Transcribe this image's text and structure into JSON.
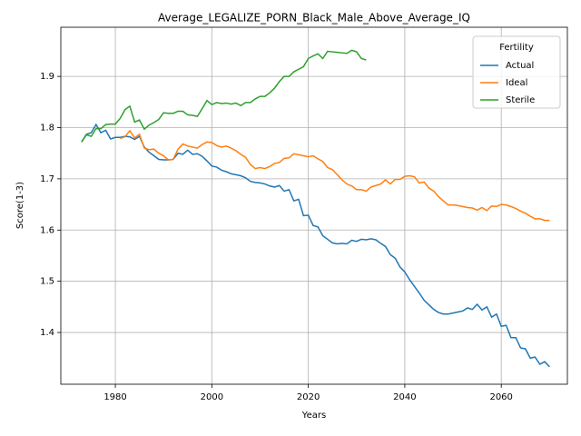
{
  "chart_data": {
    "type": "line",
    "title": "Average_LEGALIZE_PORN_Black_Male_Above_Average_IQ",
    "x_label": "Years",
    "y_label": "Score(1-3)",
    "legend_title": "Fertility",
    "legend_position": "upper right",
    "grid": true,
    "xlim": [
      1968.7,
      2073.7
    ],
    "ylim": [
      1.299,
      1.996
    ],
    "xticks": [
      1980,
      2000,
      2020,
      2040,
      2060
    ],
    "yticks": [
      1.4,
      1.5,
      1.6,
      1.7,
      1.8,
      1.9
    ],
    "x": [
      1973,
      1974,
      1975,
      1976,
      1977,
      1978,
      1979,
      1980,
      1981,
      1982,
      1983,
      1984,
      1985,
      1986,
      1987,
      1988,
      1989,
      1990,
      1991,
      1992,
      1993,
      1994,
      1995,
      1996,
      1997,
      1998,
      1999,
      2000,
      2001,
      2002,
      2003,
      2004,
      2005,
      2006,
      2007,
      2008,
      2009,
      2010,
      2011,
      2012,
      2013,
      2014,
      2015,
      2016,
      2017,
      2018,
      2019,
      2020,
      2021,
      2022,
      2023,
      2024,
      2025,
      2026,
      2027,
      2028,
      2029,
      2030,
      2031,
      2032,
      2033,
      2034,
      2035,
      2036,
      2037,
      2038,
      2039,
      2040,
      2041,
      2042,
      2043,
      2044,
      2045,
      2046,
      2047,
      2048,
      2049,
      2050,
      2051,
      2052,
      2053,
      2054,
      2055,
      2056,
      2057,
      2058,
      2059,
      2060,
      2061,
      2062,
      2063,
      2064,
      2065,
      2066,
      2067,
      2068,
      2069,
      2070
    ],
    "series": [
      {
        "name": "Actual",
        "color": "#1f77b4",
        "values": [
          1.772,
          1.787,
          1.79,
          1.806,
          1.79,
          1.795,
          1.778,
          1.781,
          1.781,
          1.783,
          1.782,
          1.777,
          1.783,
          1.762,
          1.752,
          1.745,
          1.738,
          1.737,
          1.737,
          1.738,
          1.75,
          1.748,
          1.756,
          1.748,
          1.749,
          1.744,
          1.735,
          1.725,
          1.723,
          1.717,
          1.714,
          1.71,
          1.708,
          1.706,
          1.702,
          1.695,
          1.693,
          1.692,
          1.69,
          1.686,
          1.684,
          1.687,
          1.676,
          1.679,
          1.657,
          1.66,
          1.628,
          1.629,
          1.609,
          1.606,
          1.589,
          1.582,
          1.575,
          1.573,
          1.574,
          1.573,
          1.58,
          1.578,
          1.582,
          1.581,
          1.583,
          1.581,
          1.574,
          1.568,
          1.552,
          1.545,
          1.528,
          1.518,
          1.503,
          1.49,
          1.477,
          1.463,
          1.454,
          1.445,
          1.439,
          1.436,
          1.436,
          1.438,
          1.44,
          1.442,
          1.448,
          1.445,
          1.455,
          1.444,
          1.45,
          1.43,
          1.436,
          1.412,
          1.414,
          1.39,
          1.39,
          1.37,
          1.368,
          1.35,
          1.352,
          1.338,
          1.343,
          1.333
        ]
      },
      {
        "name": "Ideal",
        "color": "#ff7f0e",
        "values": [
          null,
          null,
          null,
          null,
          null,
          null,
          null,
          null,
          1.779,
          1.782,
          1.794,
          1.78,
          1.787,
          1.76,
          1.757,
          1.758,
          1.75,
          1.745,
          1.737,
          1.738,
          1.758,
          1.768,
          1.764,
          1.762,
          1.76,
          1.767,
          1.772,
          1.771,
          1.765,
          1.762,
          1.764,
          1.76,
          1.755,
          1.748,
          1.742,
          1.728,
          1.72,
          1.722,
          1.72,
          1.724,
          1.73,
          1.732,
          1.74,
          1.741,
          1.749,
          1.747,
          1.745,
          1.743,
          1.745,
          1.739,
          1.734,
          1.722,
          1.718,
          1.708,
          1.698,
          1.69,
          1.686,
          1.679,
          1.679,
          1.676,
          1.684,
          1.687,
          1.69,
          1.698,
          1.69,
          1.699,
          1.699,
          1.705,
          1.706,
          1.704,
          1.692,
          1.694,
          1.682,
          1.676,
          1.665,
          1.657,
          1.649,
          1.649,
          1.648,
          1.646,
          1.644,
          1.643,
          1.639,
          1.644,
          1.638,
          1.647,
          1.646,
          1.65,
          1.649,
          1.646,
          1.642,
          1.637,
          1.633,
          1.627,
          1.622,
          1.622,
          1.619,
          1.619
        ]
      },
      {
        "name": "Sterile",
        "color": "#2ca02c",
        "values": [
          1.772,
          1.786,
          1.783,
          1.798,
          1.798,
          1.806,
          1.807,
          1.807,
          1.818,
          1.835,
          1.842,
          1.811,
          1.815,
          1.797,
          1.805,
          1.81,
          1.816,
          1.829,
          1.828,
          1.828,
          1.832,
          1.832,
          1.825,
          1.824,
          1.822,
          1.837,
          1.853,
          1.845,
          1.849,
          1.847,
          1.848,
          1.846,
          1.848,
          1.843,
          1.849,
          1.849,
          1.856,
          1.861,
          1.861,
          1.868,
          1.877,
          1.89,
          1.9,
          1.9,
          1.909,
          1.914,
          1.919,
          1.935,
          1.94,
          1.944,
          1.935,
          1.949,
          1.948,
          1.947,
          1.946,
          1.945,
          1.951,
          1.948,
          1.935,
          1.932,
          null,
          null,
          null,
          null,
          null,
          null,
          null,
          null,
          null,
          null,
          null,
          null,
          null,
          null,
          null,
          null,
          null,
          null,
          null,
          null,
          null,
          null,
          null,
          null,
          null,
          null,
          null,
          null,
          null,
          null,
          null,
          null,
          null,
          null,
          null,
          null,
          null,
          null
        ]
      }
    ]
  }
}
